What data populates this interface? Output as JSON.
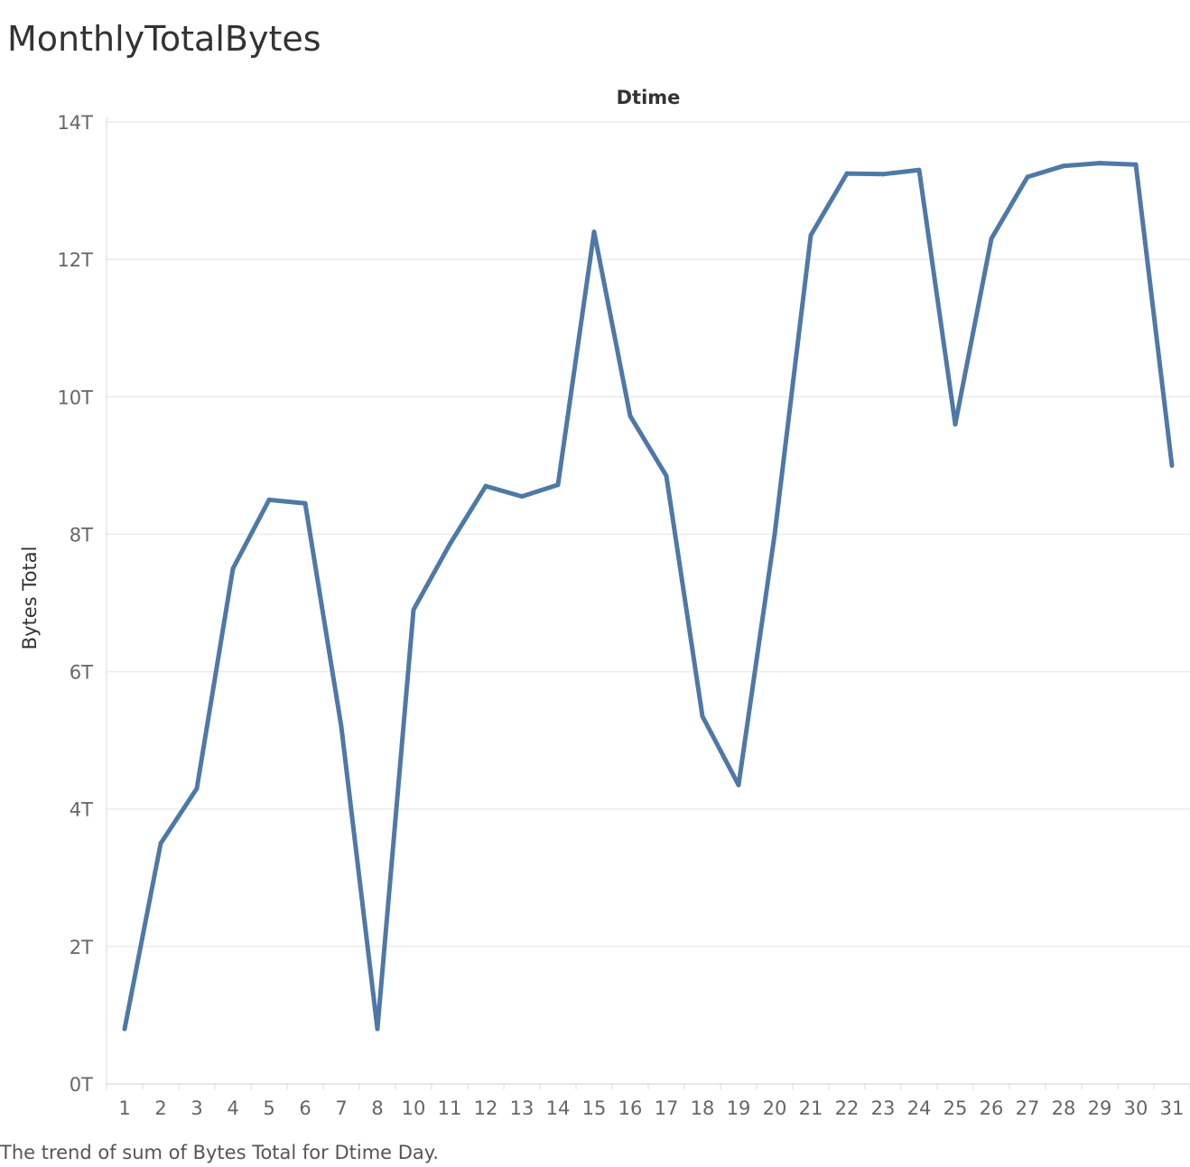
{
  "chart_data": {
    "type": "line",
    "title": "MonthlyTotalBytes",
    "header_label": "Dtime",
    "xlabel": "",
    "ylabel": "Bytes Total",
    "caption": "The trend of sum of Bytes Total for Dtime Day.",
    "categories": [
      "1",
      "2",
      "3",
      "4",
      "5",
      "6",
      "7",
      "8",
      "10",
      "11",
      "12",
      "13",
      "14",
      "15",
      "16",
      "17",
      "18",
      "19",
      "20",
      "21",
      "22",
      "23",
      "24",
      "25",
      "26",
      "27",
      "28",
      "29",
      "30",
      "31"
    ],
    "series": [
      {
        "color": "#4e79a7",
        "values": [
          0.8,
          3.5,
          4.3,
          7.5,
          8.5,
          8.45,
          5.2,
          0.8,
          6.9,
          7.85,
          8.7,
          8.55,
          8.72,
          12.4,
          9.72,
          8.85,
          5.35,
          4.35,
          8.0,
          12.35,
          13.25,
          13.24,
          13.3,
          9.6,
          12.3,
          13.2,
          13.36,
          13.4,
          13.38,
          9.0
        ]
      }
    ],
    "ylim": [
      0,
      14
    ],
    "yticks": [
      {
        "value": 0,
        "label": "0T"
      },
      {
        "value": 2,
        "label": "2T"
      },
      {
        "value": 4,
        "label": "4T"
      },
      {
        "value": 6,
        "label": "6T"
      },
      {
        "value": 8,
        "label": "8T"
      },
      {
        "value": 10,
        "label": "10T"
      },
      {
        "value": 12,
        "label": "12T"
      },
      {
        "value": 14,
        "label": "14T"
      }
    ],
    "grid": true
  }
}
